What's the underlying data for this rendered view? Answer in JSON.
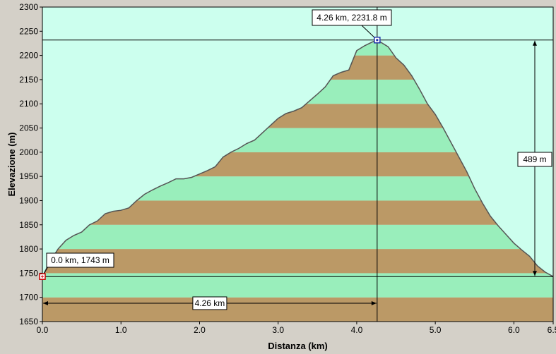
{
  "chart_data": {
    "type": "area",
    "xlabel": "Distanza  (km)",
    "ylabel": "Elevazione  (m)",
    "xlim": [
      0,
      6.5
    ],
    "ylim": [
      1650,
      2300
    ],
    "x_ticks": [
      "0.0",
      "1.0",
      "2.0",
      "3.0",
      "4.0",
      "5.0",
      "6.0",
      "6.5"
    ],
    "x_tick_values": [
      0,
      1,
      2,
      3,
      4,
      5,
      6,
      6.5
    ],
    "y_ticks": [
      "2300",
      "2250",
      "2200",
      "2150",
      "2100",
      "2050",
      "2000",
      "1950",
      "1900",
      "1850",
      "1800",
      "1750",
      "1700",
      "1650"
    ],
    "y_tick_values": [
      2300,
      2250,
      2200,
      2150,
      2100,
      2050,
      2000,
      1950,
      1900,
      1850,
      1800,
      1750,
      1700,
      1650
    ],
    "band_step": 50,
    "colors": {
      "plot_background": "#ccffee",
      "band_light": "#99eebb",
      "band_dark": "#bb9966",
      "profile_line": "#555555",
      "window_background": "#d4d0c8"
    },
    "series": [
      {
        "x": [
          0.0,
          0.1,
          0.2,
          0.3,
          0.4,
          0.5,
          0.6,
          0.7,
          0.8,
          0.9,
          1.0,
          1.1,
          1.2,
          1.3,
          1.4,
          1.5,
          1.6,
          1.7,
          1.8,
          1.9,
          2.0,
          2.1,
          2.2,
          2.3,
          2.4,
          2.5,
          2.6,
          2.7,
          2.8,
          2.9,
          3.0,
          3.1,
          3.2,
          3.3,
          3.4,
          3.5,
          3.6,
          3.7,
          3.8,
          3.9,
          4.0,
          4.1,
          4.2,
          4.26,
          4.4,
          4.5,
          4.6,
          4.7,
          4.8,
          4.9,
          5.0,
          5.1,
          5.2,
          5.3,
          5.4,
          5.5,
          5.6,
          5.7,
          5.8,
          5.9,
          6.0,
          6.1,
          6.2,
          6.3,
          6.4,
          6.5
        ],
        "y": [
          1743,
          1775,
          1800,
          1818,
          1828,
          1835,
          1850,
          1858,
          1873,
          1878,
          1880,
          1885,
          1900,
          1913,
          1922,
          1930,
          1937,
          1945,
          1945,
          1948,
          1955,
          1962,
          1970,
          1990,
          2000,
          2008,
          2018,
          2025,
          2040,
          2055,
          2070,
          2080,
          2085,
          2092,
          2106,
          2120,
          2135,
          2158,
          2165,
          2170,
          2210,
          2220,
          2228,
          2232,
          2218,
          2195,
          2180,
          2158,
          2130,
          2100,
          2078,
          2050,
          2020,
          1990,
          1960,
          1925,
          1895,
          1868,
          1848,
          1830,
          1812,
          1798,
          1785,
          1765,
          1752,
          1743
        ]
      }
    ],
    "annotations": {
      "start_label": "0.0 km, 1743 m",
      "peak_label": "4.26 km, 2231.8 m",
      "distance_label": "4.26 km",
      "gain_label": "489 m"
    },
    "markers": {
      "start": {
        "x": 0.0,
        "y": 1743
      },
      "peak": {
        "x": 4.26,
        "y": 2231.8
      }
    }
  }
}
